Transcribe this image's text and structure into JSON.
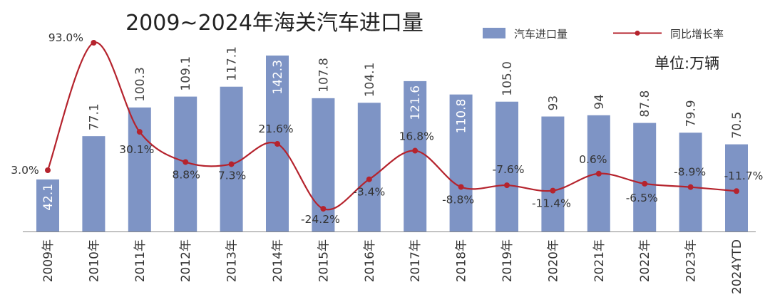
{
  "chart_data": {
    "type": "bar",
    "title": "2009~2024年海关汽车进口量",
    "unit": "单位:万辆",
    "categories": [
      "2009年",
      "2010年",
      "2011年",
      "2012年",
      "2013年",
      "2014年",
      "2015年",
      "2016年",
      "2017年",
      "2018年",
      "2019年",
      "2020年",
      "2021年",
      "2022年",
      "2023年",
      "2024YTD"
    ],
    "series": [
      {
        "name": "汽车进口量",
        "type": "bar",
        "axis": "left",
        "values": [
          42.1,
          77.1,
          100.3,
          109.1,
          117.1,
          142.3,
          107.8,
          104.1,
          121.6,
          110.8,
          105.0,
          93,
          94,
          87.8,
          79.9,
          70.5
        ],
        "labels": [
          "42.1",
          "77.1",
          "100.3",
          "109.1",
          "117.1",
          "142.3",
          "107.8",
          "104.1",
          "121.6",
          "110.8",
          "105.0",
          "93",
          "94",
          "87.8",
          "79.9",
          "70.5"
        ],
        "label_inside": [
          true,
          false,
          false,
          false,
          false,
          true,
          false,
          false,
          true,
          true,
          false,
          false,
          false,
          false,
          false,
          false
        ],
        "color": "#7e94c5"
      },
      {
        "name": "同比增长率",
        "type": "line",
        "axis": "right",
        "values": [
          3.0,
          93.0,
          30.1,
          8.8,
          7.3,
          21.6,
          -24.2,
          -3.4,
          16.8,
          -8.8,
          -7.6,
          -11.4,
          0.6,
          -6.5,
          -8.9,
          -11.7
        ],
        "labels": [
          "3.0%",
          "93.0%",
          "30.1%",
          "8.8%",
          "7.3%",
          "21.6%",
          "-24.2%",
          "-3.4%",
          "16.8%",
          "-8.8%",
          "-7.6%",
          "-11.4%",
          "0.6%",
          "-6.5%",
          "-8.9%",
          "-11.7%"
        ],
        "color": "#b5232d"
      }
    ],
    "ylim_left": [
      0,
      150
    ],
    "ylim_right": [
      -30,
      105
    ],
    "grid": false,
    "legend_position": "top-right"
  }
}
